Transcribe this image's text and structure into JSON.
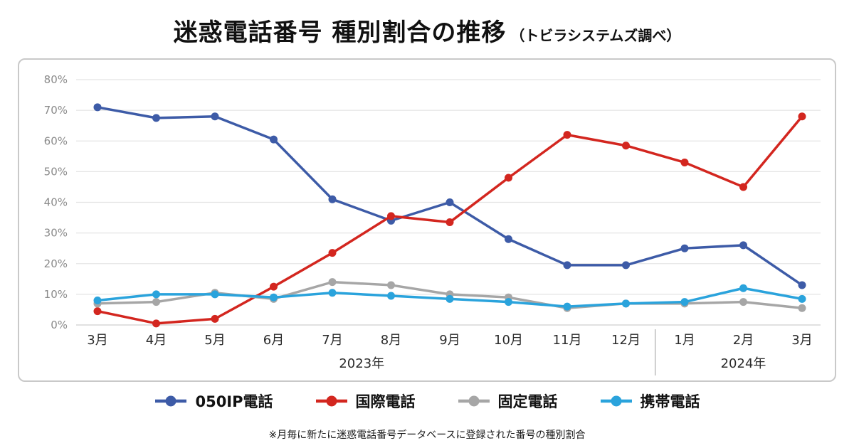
{
  "title": {
    "main": "迷惑電話番号 種別割合の推移",
    "sub": "（トビラシステムズ調べ）"
  },
  "footnote": "※月毎に新たに迷惑電話番号データベースに登録された番号の種別割合",
  "chart_data": {
    "type": "line",
    "categories": [
      "3月",
      "4月",
      "5月",
      "6月",
      "7月",
      "8月",
      "9月",
      "10月",
      "11月",
      "12月",
      "1月",
      "2月",
      "3月"
    ],
    "year_groups": [
      {
        "label": "2023年",
        "from": 0,
        "to": 9
      },
      {
        "label": "2024年",
        "from": 10,
        "to": 12
      }
    ],
    "ylim": [
      0,
      80
    ],
    "ytick_step": 10,
    "ytick_suffix": "%",
    "grid": true,
    "legend_position": "bottom",
    "colors": {
      "grid": "#e4e4e4",
      "axis_zero": "#cfcfcf",
      "y_tick_text": "#8a8a8a",
      "x_tick_text": "#2b2b2b",
      "separator": "#9a9a9a"
    },
    "series": [
      {
        "name": "050IP電話",
        "color": "#3d5ba7",
        "values": [
          71,
          67.5,
          68,
          60.5,
          41,
          34,
          40,
          28,
          19.5,
          19.5,
          25,
          26,
          13
        ]
      },
      {
        "name": "国際電話",
        "color": "#d3261f",
        "values": [
          4.5,
          0.5,
          2,
          12.5,
          23.5,
          35.5,
          33.5,
          48,
          62,
          58.5,
          53,
          45,
          68
        ]
      },
      {
        "name": "固定電話",
        "color": "#a6a6a6",
        "values": [
          7,
          7.5,
          10.5,
          8.5,
          14,
          13,
          10,
          9,
          5.5,
          7,
          7,
          7.5,
          5.5
        ]
      },
      {
        "name": "携帯電話",
        "color": "#2aa3dc",
        "values": [
          8,
          10,
          10,
          9,
          10.5,
          9.5,
          8.5,
          7.5,
          6,
          7,
          7.5,
          12,
          8.5
        ]
      }
    ]
  }
}
